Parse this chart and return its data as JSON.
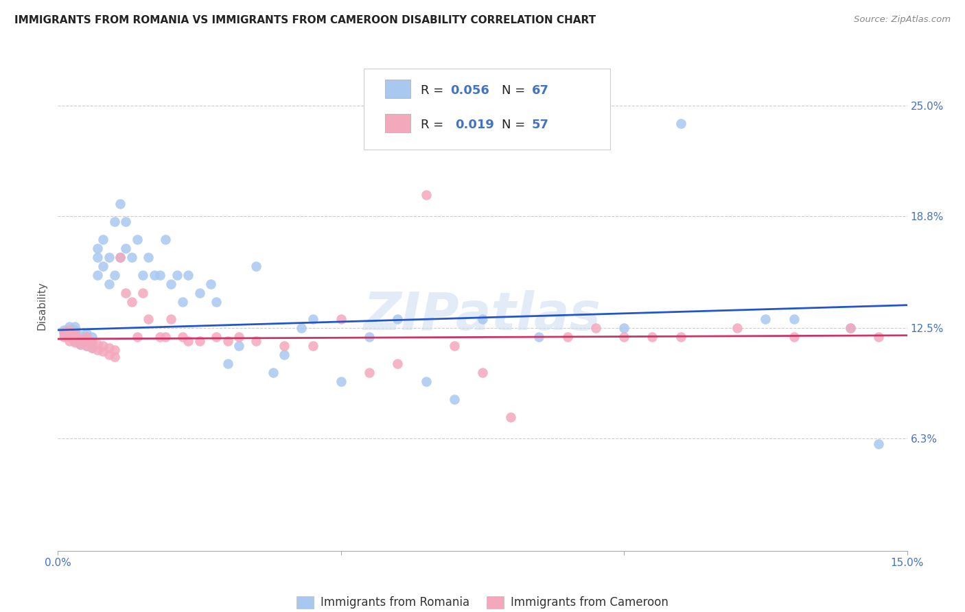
{
  "title": "IMMIGRANTS FROM ROMANIA VS IMMIGRANTS FROM CAMEROON DISABILITY CORRELATION CHART",
  "source": "Source: ZipAtlas.com",
  "ylabel": "Disability",
  "xlim": [
    0.0,
    0.15
  ],
  "ylim": [
    0.0,
    0.275
  ],
  "romania_color": "#A8C8F0",
  "cameroon_color": "#F4A8BC",
  "romania_line_color": "#2255CC",
  "cameroon_line_color": "#CC3366",
  "romania_R": 0.056,
  "romania_N": 67,
  "cameroon_R": 0.019,
  "cameroon_N": 57,
  "romania_legend_label": "Immigrants from Romania",
  "cameroon_legend_label": "Immigrants from Cameroon",
  "watermark": "ZIPatlas",
  "romania_scatter_x": [
    0.001,
    0.001,
    0.002,
    0.002,
    0.002,
    0.003,
    0.003,
    0.003,
    0.003,
    0.003,
    0.004,
    0.004,
    0.004,
    0.005,
    0.005,
    0.005,
    0.005,
    0.006,
    0.006,
    0.006,
    0.007,
    0.007,
    0.007,
    0.008,
    0.008,
    0.009,
    0.009,
    0.01,
    0.01,
    0.011,
    0.011,
    0.012,
    0.012,
    0.013,
    0.014,
    0.015,
    0.016,
    0.017,
    0.018,
    0.019,
    0.02,
    0.021,
    0.022,
    0.023,
    0.025,
    0.027,
    0.028,
    0.03,
    0.032,
    0.035,
    0.038,
    0.04,
    0.043,
    0.045,
    0.05,
    0.055,
    0.06,
    0.065,
    0.07,
    0.075,
    0.085,
    0.1,
    0.11,
    0.125,
    0.13,
    0.14,
    0.145
  ],
  "romania_scatter_y": [
    0.122,
    0.124,
    0.12,
    0.123,
    0.126,
    0.118,
    0.12,
    0.122,
    0.124,
    0.126,
    0.116,
    0.119,
    0.121,
    0.115,
    0.118,
    0.12,
    0.122,
    0.114,
    0.117,
    0.12,
    0.155,
    0.165,
    0.17,
    0.16,
    0.175,
    0.15,
    0.165,
    0.155,
    0.185,
    0.195,
    0.165,
    0.17,
    0.185,
    0.165,
    0.175,
    0.155,
    0.165,
    0.155,
    0.155,
    0.175,
    0.15,
    0.155,
    0.14,
    0.155,
    0.145,
    0.15,
    0.14,
    0.105,
    0.115,
    0.16,
    0.1,
    0.11,
    0.125,
    0.13,
    0.095,
    0.12,
    0.13,
    0.095,
    0.085,
    0.13,
    0.12,
    0.125,
    0.24,
    0.13,
    0.13,
    0.125,
    0.06
  ],
  "cameroon_scatter_x": [
    0.001,
    0.001,
    0.002,
    0.002,
    0.002,
    0.003,
    0.003,
    0.003,
    0.004,
    0.004,
    0.005,
    0.005,
    0.005,
    0.006,
    0.006,
    0.007,
    0.007,
    0.008,
    0.008,
    0.009,
    0.009,
    0.01,
    0.01,
    0.011,
    0.012,
    0.013,
    0.014,
    0.015,
    0.016,
    0.018,
    0.019,
    0.02,
    0.022,
    0.023,
    0.025,
    0.028,
    0.03,
    0.032,
    0.035,
    0.04,
    0.045,
    0.05,
    0.055,
    0.06,
    0.065,
    0.07,
    0.075,
    0.08,
    0.09,
    0.095,
    0.1,
    0.105,
    0.11,
    0.12,
    0.13,
    0.14,
    0.145
  ],
  "cameroon_scatter_y": [
    0.12,
    0.123,
    0.118,
    0.121,
    0.124,
    0.117,
    0.12,
    0.122,
    0.116,
    0.119,
    0.115,
    0.118,
    0.12,
    0.114,
    0.117,
    0.113,
    0.116,
    0.112,
    0.115,
    0.11,
    0.114,
    0.109,
    0.113,
    0.165,
    0.145,
    0.14,
    0.12,
    0.145,
    0.13,
    0.12,
    0.12,
    0.13,
    0.12,
    0.118,
    0.118,
    0.12,
    0.118,
    0.12,
    0.118,
    0.115,
    0.115,
    0.13,
    0.1,
    0.105,
    0.2,
    0.115,
    0.1,
    0.075,
    0.12,
    0.125,
    0.12,
    0.12,
    0.12,
    0.125,
    0.12,
    0.125,
    0.12
  ],
  "ytick_positions": [
    0.063,
    0.125,
    0.188,
    0.25
  ],
  "ytick_labels": [
    "6.3%",
    "12.5%",
    "18.8%",
    "25.0%"
  ],
  "xtick_positions": [
    0.0,
    0.05,
    0.1,
    0.15
  ],
  "xtick_labels": [
    "0.0%",
    "",
    "",
    "15.0%"
  ],
  "romania_line_x0": 0.0,
  "romania_line_y0": 0.124,
  "romania_line_x1": 0.15,
  "romania_line_y1": 0.138,
  "cameroon_line_x0": 0.0,
  "cameroon_line_y0": 0.119,
  "cameroon_line_x1": 0.15,
  "cameroon_line_y1": 0.121
}
